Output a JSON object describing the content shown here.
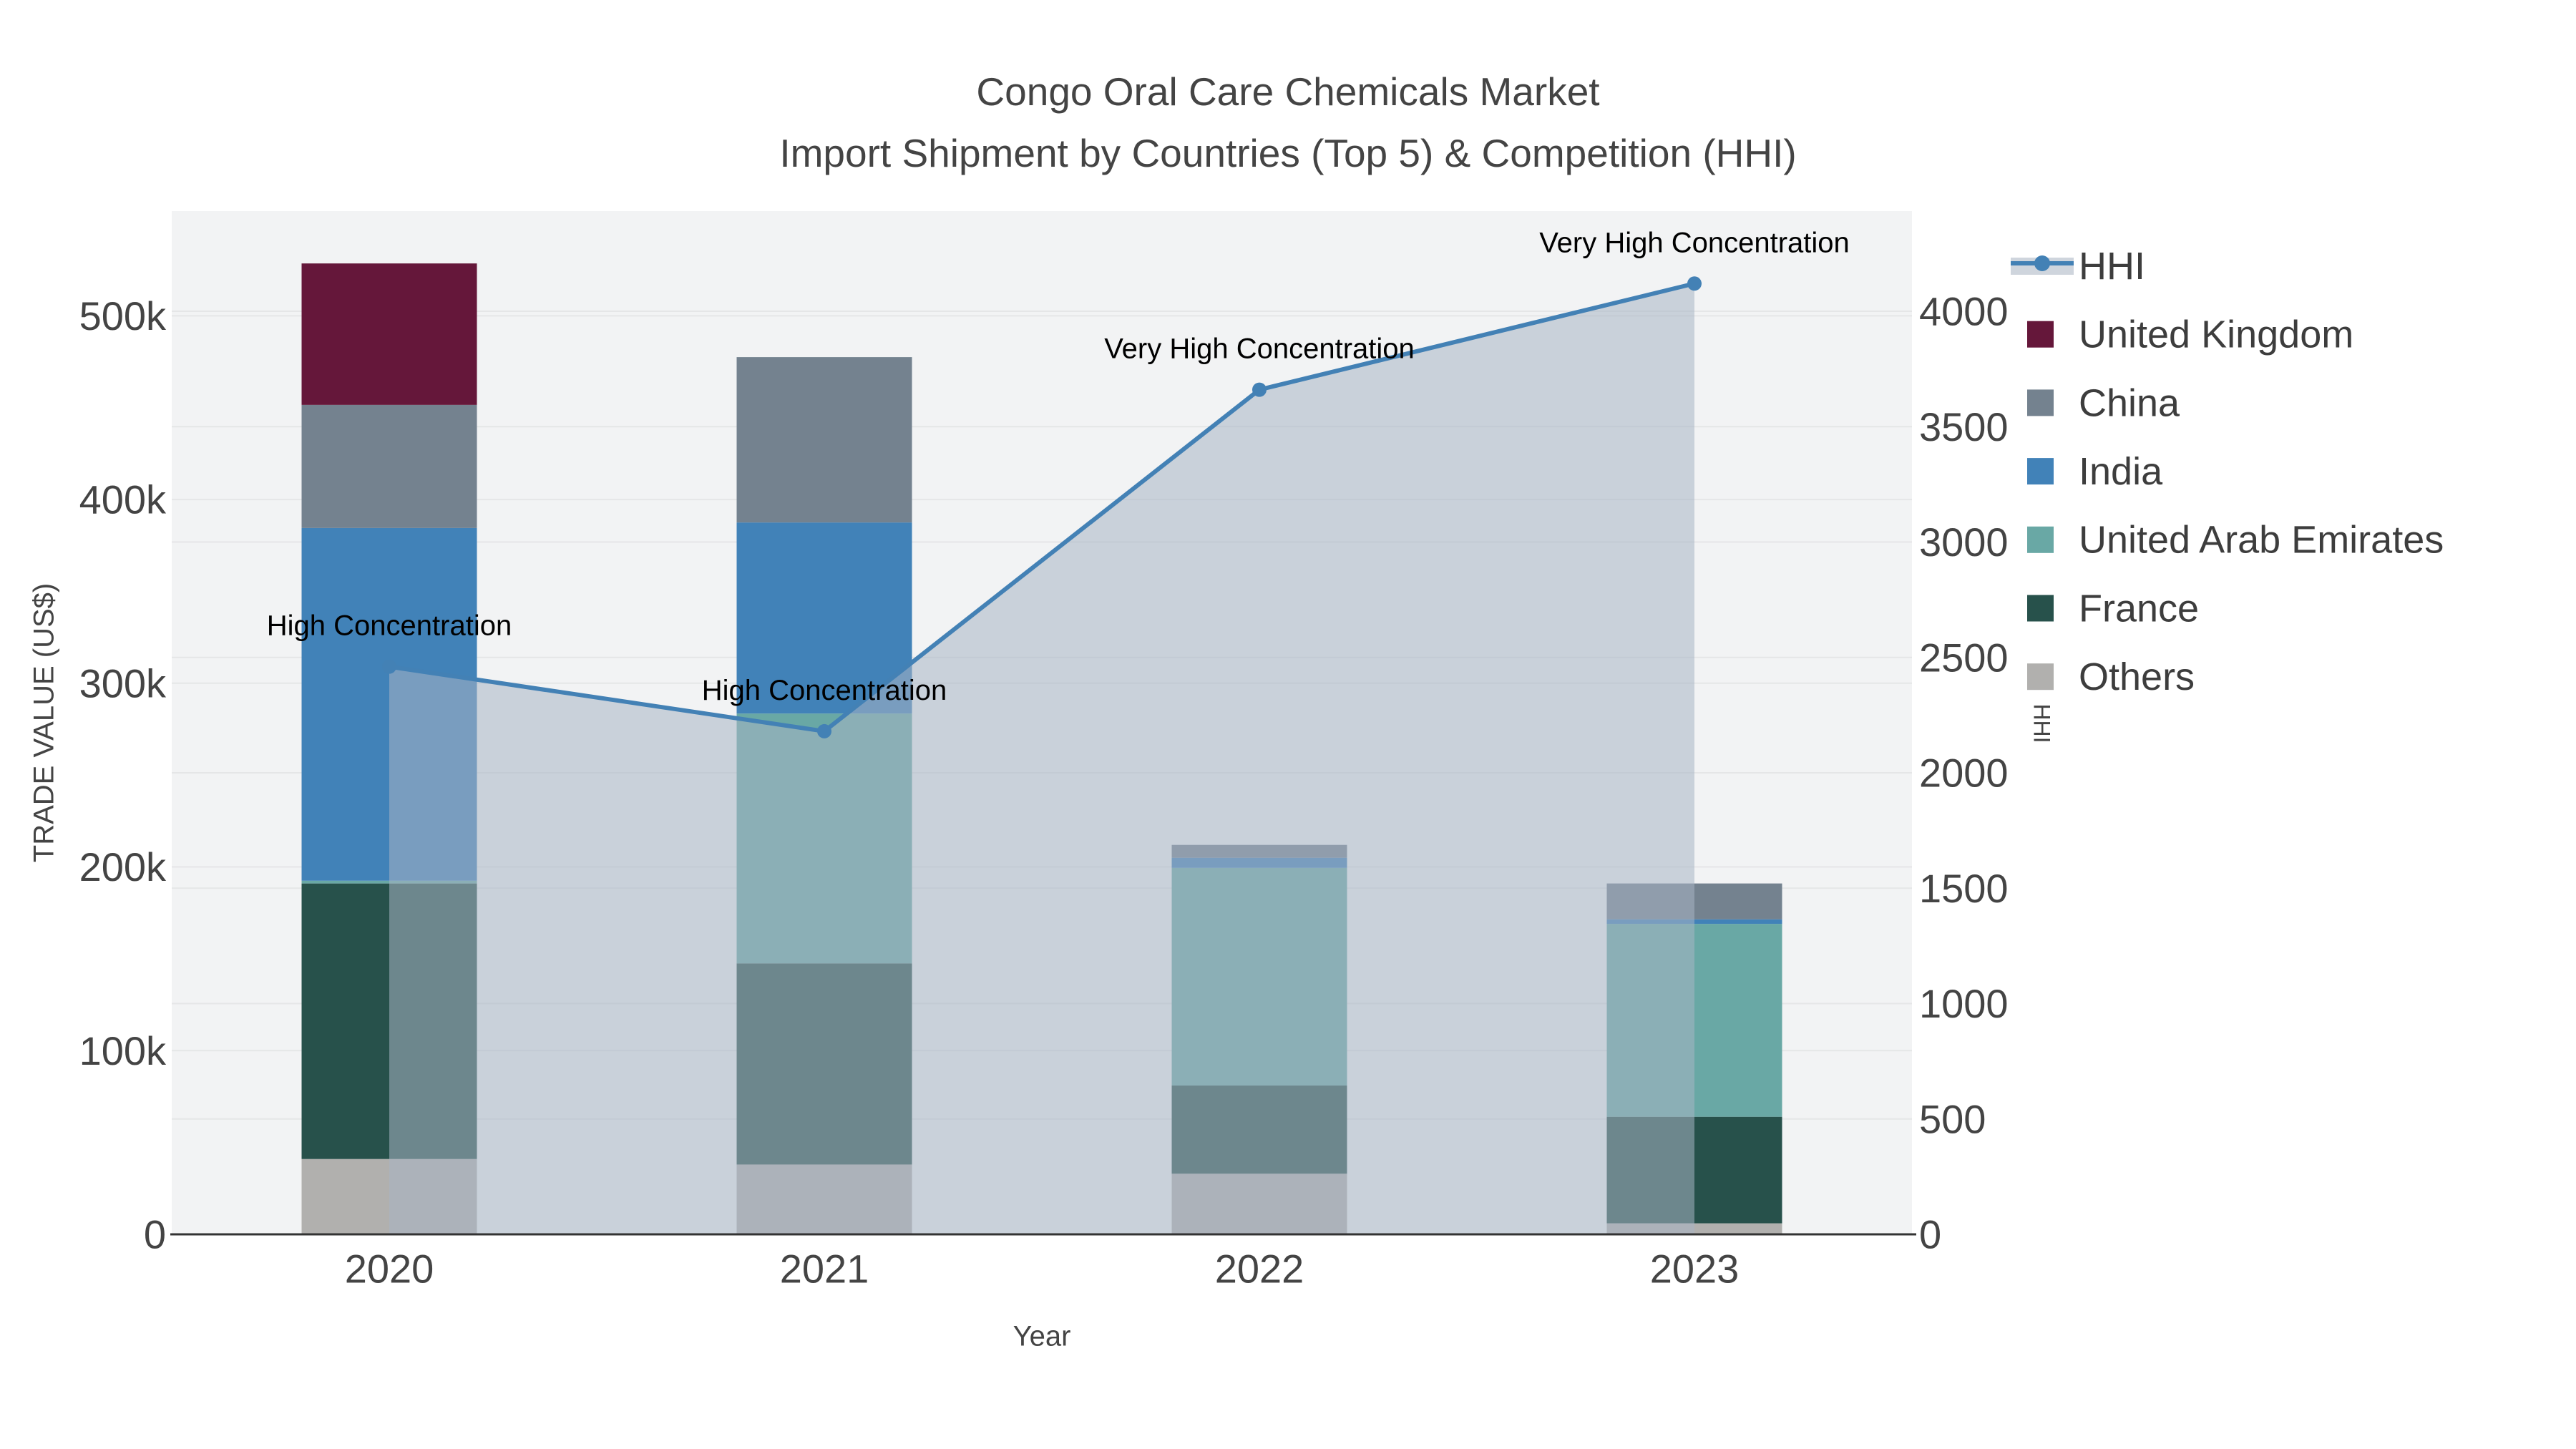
{
  "title": {
    "line1": "Congo Oral Care Chemicals Market",
    "line2": "Import Shipment by Countries (Top 5) & Competition (HHI)"
  },
  "axes": {
    "x": {
      "title": "Year",
      "categories": [
        "2020",
        "2021",
        "2022",
        "2023"
      ]
    },
    "left": {
      "title": "TRADE VALUE (US$)",
      "max": 557000,
      "ticks": [
        {
          "label": "0",
          "value": 0
        },
        {
          "label": "100k",
          "value": 100000
        },
        {
          "label": "200k",
          "value": 200000
        },
        {
          "label": "300k",
          "value": 300000
        },
        {
          "label": "400k",
          "value": 400000
        },
        {
          "label": "500k",
          "value": 500000
        }
      ]
    },
    "right": {
      "title": "HHI",
      "max": 4434,
      "ticks": [
        {
          "label": "0",
          "value": 0
        },
        {
          "label": "500",
          "value": 500
        },
        {
          "label": "1000",
          "value": 1000
        },
        {
          "label": "1500",
          "value": 1500
        },
        {
          "label": "2000",
          "value": 2000
        },
        {
          "label": "2500",
          "value": 2500
        },
        {
          "label": "3000",
          "value": 3000
        },
        {
          "label": "3500",
          "value": 3500
        },
        {
          "label": "4000",
          "value": 4000
        }
      ]
    }
  },
  "legend": {
    "items": [
      {
        "label": "HHI",
        "type": "line",
        "color": "#4381b5",
        "band": "#cfd5dd"
      },
      {
        "label": "United Kingdom",
        "type": "swatch",
        "color": "#65173a"
      },
      {
        "label": "China",
        "type": "swatch",
        "color": "#74828f"
      },
      {
        "label": "India",
        "type": "swatch",
        "color": "#4182b8"
      },
      {
        "label": "United Arab Emirates",
        "type": "swatch",
        "color": "#69a8a5"
      },
      {
        "label": "France",
        "type": "swatch",
        "color": "#27514b"
      },
      {
        "label": "Others",
        "type": "swatch",
        "color": "#b1b0ae"
      }
    ]
  },
  "colors": {
    "plot_bg": "#f2f3f4",
    "grid": "rgba(0,0,0,0.05)",
    "axis_line": "#333333",
    "tick_text": "#444444",
    "legend_text": "#3d3d3d",
    "annotation_text": "#000000",
    "hhi_line": "#4381b5",
    "hhi_fill": "rgba(168,180,197,0.55)"
  },
  "chart_data": {
    "type": "bar+line",
    "title": "Congo Oral Care Chemicals Market — Import Shipment by Countries (Top 5) & Competition (HHI)",
    "xlabel": "Year",
    "ylabel_left": "TRADE VALUE (US$)",
    "ylabel_right": "HHI",
    "ylim_left": [
      0,
      557000
    ],
    "ylim_right": [
      0,
      4434
    ],
    "grid": true,
    "legend_position": "right",
    "categories": [
      "2020",
      "2021",
      "2022",
      "2023"
    ],
    "stack_order_bottom_to_top": [
      "Others",
      "France",
      "United Arab Emirates",
      "India",
      "China",
      "United Kingdom"
    ],
    "series": [
      {
        "name": "United Kingdom",
        "type": "bar",
        "color": "#65173a",
        "values": [
          77000,
          0,
          0,
          0
        ]
      },
      {
        "name": "China",
        "type": "bar",
        "color": "#74828f",
        "values": [
          67000,
          90000,
          7000,
          19500
        ]
      },
      {
        "name": "India",
        "type": "bar",
        "color": "#4182b8",
        "values": [
          192000,
          104000,
          5500,
          2500
        ]
      },
      {
        "name": "United Arab Emirates",
        "type": "bar",
        "color": "#69a8a5",
        "values": [
          1500,
          136000,
          118500,
          105000
        ]
      },
      {
        "name": "France",
        "type": "bar",
        "color": "#27514b",
        "values": [
          150000,
          109500,
          48000,
          58000
        ]
      },
      {
        "name": "Others",
        "type": "bar",
        "color": "#b1b0ae",
        "values": [
          41000,
          38000,
          33000,
          6000
        ]
      },
      {
        "name": "HHI",
        "type": "line",
        "axis": "right",
        "color": "#4381b5",
        "fill": "rgba(168,180,197,0.55)",
        "values": [
          2460,
          2180,
          3660,
          4120
        ]
      }
    ],
    "bar_totals": [
      528500,
      477500,
      212000,
      191000
    ],
    "annotations": [
      {
        "text": "High Concentration",
        "year": "2020"
      },
      {
        "text": "High Concentration",
        "year": "2021"
      },
      {
        "text": "Very High Concentration",
        "year": "2022"
      },
      {
        "text": "Very High Concentration",
        "year": "2023"
      }
    ]
  }
}
